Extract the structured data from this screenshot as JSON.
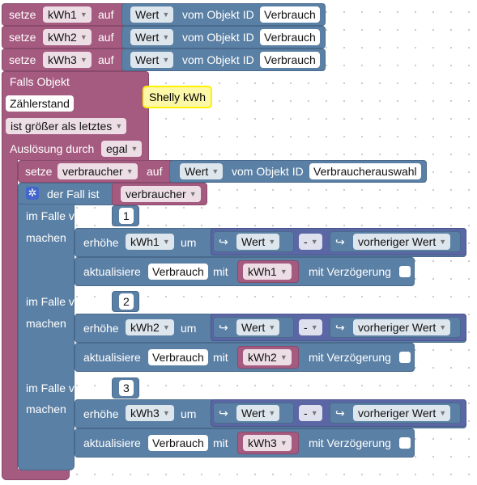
{
  "kw": {
    "setze": "setze",
    "auf": "auf",
    "vom_objekt_id": "vom Objekt ID",
    "falls_objekt": "Falls Objekt",
    "ausloesung_durch": "Auslösung durch",
    "der_fall_ist": "der Fall ist",
    "im_falle_von": "im Falle von",
    "machen": "machen",
    "erhoehe": "erhöhe",
    "um": "um",
    "aktualisiere": "aktualisiere",
    "mit": "mit",
    "mit_verzoegerung": "mit Verzögerung"
  },
  "values": {
    "kwh1": "kWh1",
    "kwh2": "kWh2",
    "kwh3": "kWh3",
    "wert": "Wert",
    "verbrauch": "Verbrauch",
    "zaehlerstand": "Zählerstand",
    "ist_groesser": "ist größer als letztes",
    "egal": "egal",
    "verbraucher": "verbraucher",
    "verbraucherauswahl": "Verbraucherauswahl",
    "minus": "-",
    "vorheriger_wert": "vorheriger Wert",
    "case1": "1",
    "case2": "2",
    "case3": "3"
  },
  "comment": "Shelly kWh",
  "icons": {
    "dropdown": "dropdown-arrow-icon",
    "gear": "gear-icon",
    "value-hook": "value-hook-icon"
  },
  "colors": {
    "event_block": "#a55b80",
    "logic_block": "#5b80a5",
    "math_block": "#5b67a5",
    "comment_border": "#fff200"
  }
}
